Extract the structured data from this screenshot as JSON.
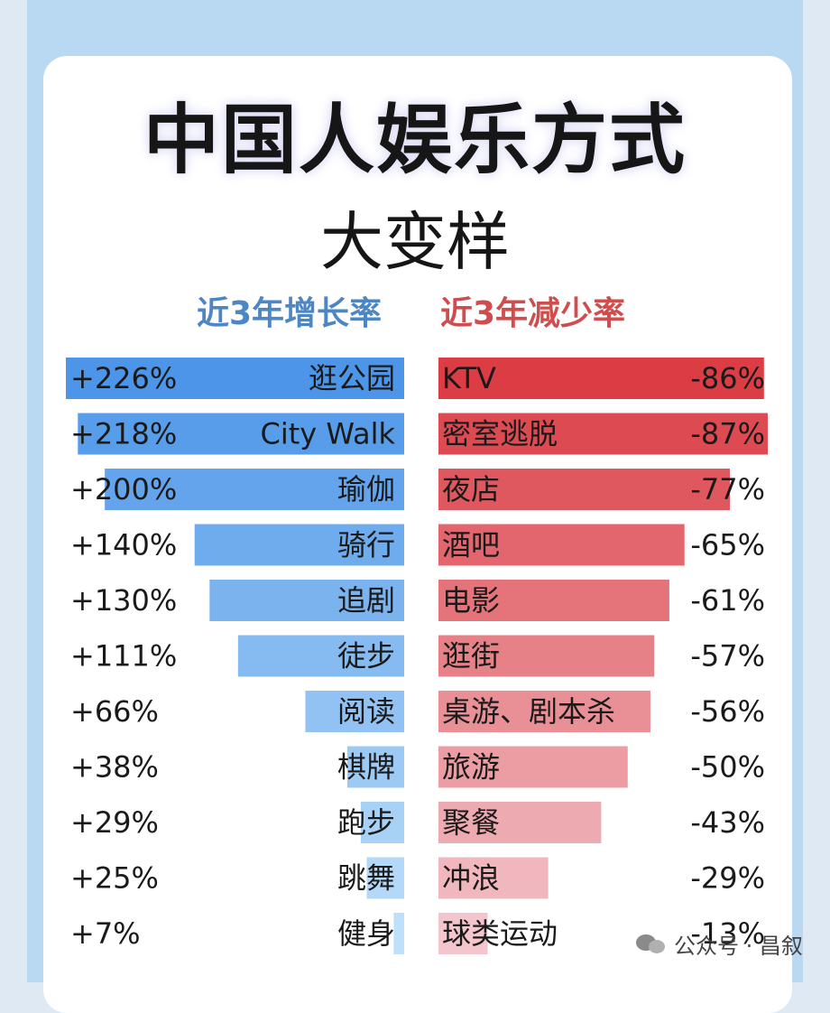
{
  "title": "中国人娱乐方式",
  "subtitle": "大变样",
  "watermark": "公众号 · 昌叙",
  "colors": {
    "growth_dark": "#4d95e8",
    "growth_light": "#bfe0fa",
    "decline_dark": "#dc3c44",
    "decline_light": "#f2c6cc"
  },
  "chart_data": [
    {
      "type": "bar",
      "title": "近3年增长率",
      "categories": [
        "逛公园",
        "City Walk",
        "瑜伽",
        "骑行",
        "追剧",
        "徒步",
        "阅读",
        "棋牌",
        "跑步",
        "跳舞",
        "健身"
      ],
      "values": [
        226,
        218,
        200,
        140,
        130,
        111,
        66,
        38,
        29,
        25,
        7
      ],
      "data_labels": [
        "+226%",
        "+218%",
        "+200%",
        "+140%",
        "+130%",
        "+111%",
        "+66%",
        "+38%",
        "+29%",
        "+25%",
        "+7%"
      ],
      "unit": "%"
    },
    {
      "type": "bar",
      "title": "近3年减少率",
      "categories": [
        "KTV",
        "密室逃脱",
        "夜店",
        "酒吧",
        "电影",
        "逛街",
        "桌游、剧本杀",
        "旅游",
        "聚餐",
        "冲浪",
        "球类运动"
      ],
      "values": [
        -86,
        -87,
        -77,
        -65,
        -61,
        -57,
        -56,
        -50,
        -43,
        -29,
        -13
      ],
      "data_labels": [
        "-86%",
        "-87%",
        "-77%",
        "-65%",
        "-61%",
        "-57%",
        "-56%",
        "-50%",
        "-43%",
        "-29%",
        "-13%"
      ],
      "unit": "%"
    }
  ]
}
